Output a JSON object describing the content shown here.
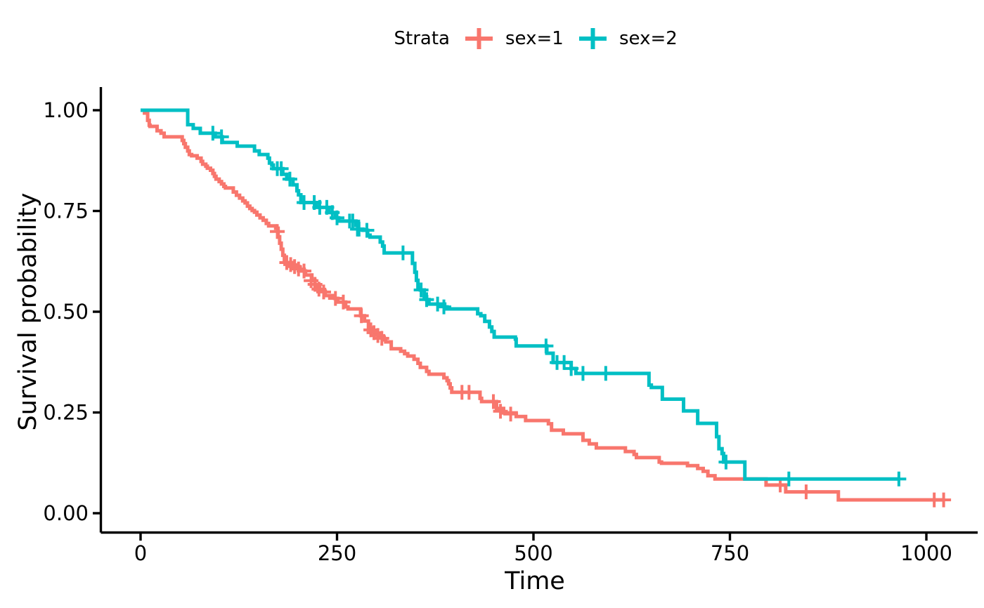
{
  "legend": {
    "title": "Strata",
    "items": [
      {
        "label": "sex=1",
        "color": "#F8766D"
      },
      {
        "label": "sex=2",
        "color": "#00BFC4"
      }
    ]
  },
  "axes": {
    "x": {
      "title": "Time",
      "tick_labels": [
        "0",
        "250",
        "500",
        "750",
        "1000"
      ]
    },
    "y": {
      "title": "Survival probability",
      "tick_labels": [
        "0.00",
        "0.25",
        "0.50",
        "0.75",
        "1.00"
      ]
    }
  },
  "chart_data": {
    "type": "line",
    "subtype": "kaplan-meier-step",
    "title": "",
    "xlabel": "Time",
    "ylabel": "Survival probability",
    "xlim": [
      0,
      1060
    ],
    "ylim": [
      0,
      1
    ],
    "x_ticks": [
      0,
      250,
      500,
      750,
      1000
    ],
    "y_ticks": [
      0,
      0.25,
      0.5,
      0.75,
      1
    ],
    "y_tick_labels": [
      "0.00",
      "0.25",
      "0.50",
      "0.75",
      "1.00"
    ],
    "grid": false,
    "legend_position": "top",
    "legend_title": "Strata",
    "censor_symbol": "+",
    "series": [
      {
        "name": "sex=1",
        "color": "#F8766D",
        "end_time": 1022,
        "steps": [
          [
            0,
            1.0
          ],
          [
            5,
            0.993
          ],
          [
            9,
            0.975
          ],
          [
            11,
            0.963
          ],
          [
            12,
            0.96
          ],
          [
            21,
            0.949
          ],
          [
            26,
            0.943
          ],
          [
            30,
            0.934
          ],
          [
            53,
            0.925
          ],
          [
            55,
            0.917
          ],
          [
            57,
            0.908
          ],
          [
            60,
            0.899
          ],
          [
            62,
            0.89
          ],
          [
            65,
            0.887
          ],
          [
            72,
            0.881
          ],
          [
            77,
            0.873
          ],
          [
            79,
            0.866
          ],
          [
            83,
            0.861
          ],
          [
            85,
            0.856
          ],
          [
            89,
            0.851
          ],
          [
            92,
            0.843
          ],
          [
            94,
            0.836
          ],
          [
            96,
            0.829
          ],
          [
            100,
            0.823
          ],
          [
            103,
            0.817
          ],
          [
            106,
            0.811
          ],
          [
            108,
            0.807
          ],
          [
            118,
            0.797
          ],
          [
            122,
            0.789
          ],
          [
            126,
            0.782
          ],
          [
            130,
            0.775
          ],
          [
            133,
            0.77
          ],
          [
            136,
            0.762
          ],
          [
            139,
            0.756
          ],
          [
            142,
            0.751
          ],
          [
            145,
            0.747
          ],
          [
            148,
            0.74
          ],
          [
            152,
            0.733
          ],
          [
            156,
            0.727
          ],
          [
            160,
            0.719
          ],
          [
            163,
            0.713
          ],
          [
            172,
            0.707
          ],
          [
            175,
            0.686
          ],
          [
            177,
            0.67
          ],
          [
            179,
            0.655
          ],
          [
            181,
            0.64
          ],
          [
            183,
            0.629
          ],
          [
            185,
            0.622
          ],
          [
            195,
            0.612
          ],
          [
            202,
            0.601
          ],
          [
            210,
            0.591
          ],
          [
            218,
            0.577
          ],
          [
            222,
            0.563
          ],
          [
            228,
            0.551
          ],
          [
            235,
            0.54
          ],
          [
            247,
            0.533
          ],
          [
            251,
            0.524
          ],
          [
            261,
            0.512
          ],
          [
            264,
            0.507
          ],
          [
            280,
            0.49
          ],
          [
            285,
            0.477
          ],
          [
            290,
            0.46
          ],
          [
            295,
            0.451
          ],
          [
            300,
            0.444
          ],
          [
            305,
            0.437
          ],
          [
            310,
            0.43
          ],
          [
            312,
            0.425
          ],
          [
            319,
            0.408
          ],
          [
            331,
            0.402
          ],
          [
            336,
            0.396
          ],
          [
            340,
            0.39
          ],
          [
            348,
            0.382
          ],
          [
            353,
            0.372
          ],
          [
            356,
            0.362
          ],
          [
            364,
            0.352
          ],
          [
            367,
            0.345
          ],
          [
            386,
            0.336
          ],
          [
            390,
            0.329
          ],
          [
            392,
            0.321
          ],
          [
            394,
            0.311
          ],
          [
            396,
            0.3
          ],
          [
            432,
            0.285
          ],
          [
            434,
            0.277
          ],
          [
            453,
            0.26
          ],
          [
            462,
            0.249
          ],
          [
            478,
            0.24
          ],
          [
            490,
            0.23
          ],
          [
            519,
            0.222
          ],
          [
            523,
            0.206
          ],
          [
            538,
            0.197
          ],
          [
            563,
            0.181
          ],
          [
            571,
            0.172
          ],
          [
            580,
            0.162
          ],
          [
            617,
            0.153
          ],
          [
            628,
            0.146
          ],
          [
            631,
            0.138
          ],
          [
            660,
            0.127
          ],
          [
            663,
            0.124
          ],
          [
            696,
            0.118
          ],
          [
            709,
            0.111
          ],
          [
            716,
            0.104
          ],
          [
            722,
            0.093
          ],
          [
            731,
            0.085
          ],
          [
            796,
            0.07
          ],
          [
            821,
            0.053
          ],
          [
            888,
            0.033
          ]
        ],
        "censors": [
          [
            174,
            0.699
          ],
          [
            186,
            0.622
          ],
          [
            191,
            0.617
          ],
          [
            196,
            0.612
          ],
          [
            201,
            0.606
          ],
          [
            208,
            0.601
          ],
          [
            217,
            0.577
          ],
          [
            222,
            0.568
          ],
          [
            227,
            0.556
          ],
          [
            233,
            0.549
          ],
          [
            248,
            0.533
          ],
          [
            258,
            0.524
          ],
          [
            281,
            0.49
          ],
          [
            293,
            0.455
          ],
          [
            297,
            0.448
          ],
          [
            302,
            0.441
          ],
          [
            307,
            0.434
          ],
          [
            409,
            0.3
          ],
          [
            418,
            0.3
          ],
          [
            449,
            0.277
          ],
          [
            458,
            0.253
          ],
          [
            471,
            0.246
          ],
          [
            814,
            0.07
          ],
          [
            847,
            0.053
          ],
          [
            1010,
            0.033
          ],
          [
            1022,
            0.033
          ]
        ]
      },
      {
        "name": "sex=2",
        "color": "#00BFC4",
        "end_time": 965,
        "steps": [
          [
            0,
            1.0
          ],
          [
            60,
            0.964
          ],
          [
            67,
            0.955
          ],
          [
            76,
            0.943
          ],
          [
            95,
            0.934
          ],
          [
            104,
            0.92
          ],
          [
            123,
            0.911
          ],
          [
            145,
            0.899
          ],
          [
            151,
            0.89
          ],
          [
            162,
            0.881
          ],
          [
            164,
            0.869
          ],
          [
            167,
            0.864
          ],
          [
            169,
            0.855
          ],
          [
            181,
            0.841
          ],
          [
            186,
            0.829
          ],
          [
            194,
            0.815
          ],
          [
            199,
            0.8
          ],
          [
            201,
            0.79
          ],
          [
            204,
            0.771
          ],
          [
            224,
            0.759
          ],
          [
            240,
            0.746
          ],
          [
            248,
            0.733
          ],
          [
            252,
            0.725
          ],
          [
            274,
            0.714
          ],
          [
            277,
            0.705
          ],
          [
            283,
            0.702
          ],
          [
            289,
            0.69
          ],
          [
            292,
            0.685
          ],
          [
            305,
            0.673
          ],
          [
            308,
            0.663
          ],
          [
            310,
            0.646
          ],
          [
            346,
            0.62
          ],
          [
            349,
            0.598
          ],
          [
            351,
            0.578
          ],
          [
            353,
            0.559
          ],
          [
            356,
            0.554
          ],
          [
            361,
            0.537
          ],
          [
            364,
            0.53
          ],
          [
            367,
            0.519
          ],
          [
            387,
            0.512
          ],
          [
            390,
            0.507
          ],
          [
            429,
            0.495
          ],
          [
            433,
            0.49
          ],
          [
            438,
            0.476
          ],
          [
            444,
            0.462
          ],
          [
            447,
            0.451
          ],
          [
            450,
            0.437
          ],
          [
            477,
            0.432
          ],
          [
            478,
            0.415
          ],
          [
            517,
            0.397
          ],
          [
            525,
            0.374
          ],
          [
            548,
            0.359
          ],
          [
            554,
            0.347
          ],
          [
            647,
            0.318
          ],
          [
            650,
            0.312
          ],
          [
            664,
            0.283
          ],
          [
            691,
            0.254
          ],
          [
            709,
            0.223
          ],
          [
            733,
            0.19
          ],
          [
            736,
            0.16
          ],
          [
            740,
            0.148
          ],
          [
            742,
            0.127
          ],
          [
            769,
            0.085
          ]
        ],
        "censors": [
          [
            92,
            0.943
          ],
          [
            103,
            0.934
          ],
          [
            174,
            0.855
          ],
          [
            179,
            0.855
          ],
          [
            190,
            0.829
          ],
          [
            208,
            0.771
          ],
          [
            221,
            0.771
          ],
          [
            228,
            0.759
          ],
          [
            237,
            0.759
          ],
          [
            244,
            0.746
          ],
          [
            250,
            0.733
          ],
          [
            266,
            0.725
          ],
          [
            270,
            0.725
          ],
          [
            276,
            0.705
          ],
          [
            278,
            0.705
          ],
          [
            288,
            0.702
          ],
          [
            334,
            0.646
          ],
          [
            357,
            0.554
          ],
          [
            364,
            0.53
          ],
          [
            378,
            0.519
          ],
          [
            386,
            0.512
          ],
          [
            516,
            0.415
          ],
          [
            530,
            0.374
          ],
          [
            539,
            0.374
          ],
          [
            548,
            0.359
          ],
          [
            563,
            0.347
          ],
          [
            592,
            0.347
          ],
          [
            745,
            0.127
          ],
          [
            825,
            0.085
          ],
          [
            965,
            0.085
          ]
        ]
      }
    ]
  }
}
